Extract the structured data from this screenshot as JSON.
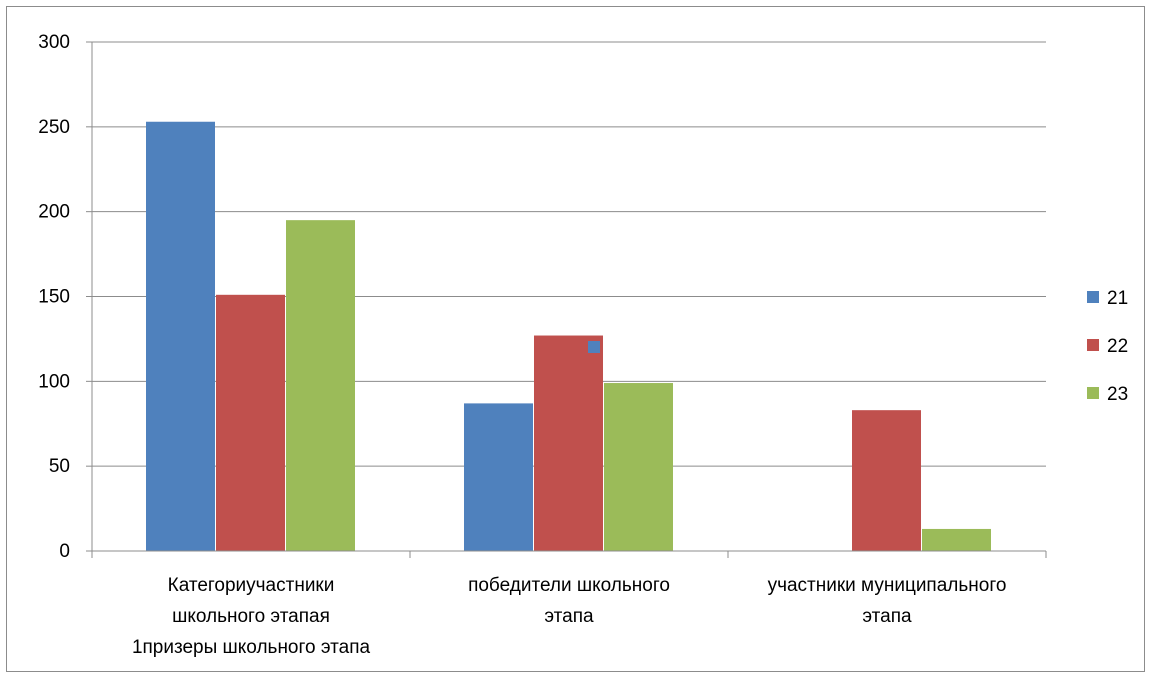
{
  "chart_data": {
    "type": "bar",
    "title": "",
    "xlabel": "",
    "ylabel": "",
    "ylim": [
      0,
      300
    ],
    "yticks": [
      0,
      50,
      100,
      150,
      200,
      250,
      300
    ],
    "grid": true,
    "legend_position": "right",
    "categories": [
      [
        "Категориучастники",
        "школьного этапая",
        "1призеры школьного этапа"
      ],
      [
        "победители школьного",
        "этапа"
      ],
      [
        "участники муниципального",
        "этапа"
      ]
    ],
    "series": [
      {
        "name": "21",
        "color": "#4f81bd",
        "values": [
          253,
          87,
          0
        ]
      },
      {
        "name": "22",
        "color": "#c0504d",
        "values": [
          151,
          127,
          83
        ]
      },
      {
        "name": "23",
        "color": "#9bbb59",
        "values": [
          195,
          99,
          13
        ]
      }
    ],
    "annotations": [
      {
        "type": "square-marker",
        "color": "#4f81bd",
        "near_category": 1,
        "near_series": 1
      }
    ]
  }
}
